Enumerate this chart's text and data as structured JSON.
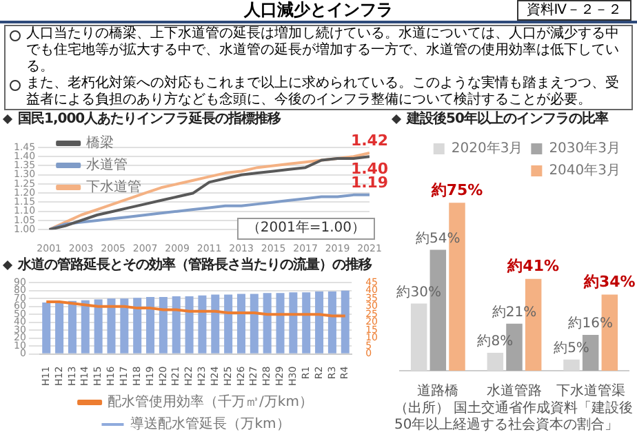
{
  "chart_data": [
    {
      "type": "other",
      "title": "人口減少とインフラ",
      "annotations": [
        "資料Ⅳ－２－２",
        "人口当たりの橋梁、上下水道管の延長は増加し続けている。水道については、人口が減少する中でも住宅地等が拡大する中で、水道管の延長が増加する一方で、水道管の使用効率は低下している。",
        "また、老朽化対策への対応もこれまで以上に求められている。このような実情も踏まえつつ、受益者による負担のあり方なども念頭に、今後のインフラ整備について検討することが必要。"
      ]
    },
    {
      "type": "line",
      "title": "国民1,000人あたりインフラ延長の指標推移",
      "x": [
        2001,
        2002,
        2003,
        2004,
        2005,
        2006,
        2007,
        2008,
        2009,
        2010,
        2011,
        2012,
        2013,
        2014,
        2015,
        2016,
        2017,
        2018,
        2019,
        2020,
        2021
      ],
      "series": [
        {
          "name": "橋梁",
          "color": "#595959",
          "values": [
            1.0,
            1.02,
            1.05,
            1.08,
            1.1,
            1.12,
            1.14,
            1.16,
            1.18,
            1.2,
            1.26,
            1.28,
            1.3,
            1.31,
            1.32,
            1.33,
            1.34,
            1.38,
            1.39,
            1.39,
            1.4
          ],
          "value_labels": [
            null,
            null,
            null,
            null,
            null,
            null,
            null,
            null,
            null,
            null,
            null,
            null,
            null,
            null,
            null,
            null,
            null,
            null,
            null,
            null,
            "1.40"
          ]
        },
        {
          "name": "水道管",
          "color": "#7f9cc8",
          "values": [
            1.0,
            1.03,
            1.04,
            1.05,
            1.06,
            1.07,
            1.08,
            1.09,
            1.1,
            1.11,
            1.12,
            1.13,
            1.13,
            1.14,
            1.15,
            1.16,
            1.17,
            1.18,
            1.18,
            1.19,
            1.19
          ],
          "value_labels": [
            null,
            null,
            null,
            null,
            null,
            null,
            null,
            null,
            null,
            null,
            null,
            null,
            null,
            null,
            null,
            null,
            null,
            null,
            null,
            null,
            "1.19"
          ]
        },
        {
          "name": "下水道管",
          "color": "#f4b183",
          "values": [
            1.0,
            1.04,
            1.08,
            1.11,
            1.14,
            1.17,
            1.2,
            1.23,
            1.25,
            1.27,
            1.29,
            1.31,
            1.32,
            1.34,
            1.35,
            1.36,
            1.37,
            1.38,
            1.39,
            1.4,
            1.42
          ],
          "value_labels": [
            null,
            null,
            null,
            null,
            null,
            null,
            null,
            null,
            null,
            null,
            null,
            null,
            null,
            null,
            null,
            null,
            null,
            null,
            null,
            null,
            "1.42"
          ]
        }
      ],
      "xlim": [
        2001,
        2021
      ],
      "xticks": [
        2001,
        2003,
        2005,
        2007,
        2009,
        2011,
        2013,
        2015,
        2017,
        2019,
        2021
      ],
      "ylim": [
        1.0,
        1.45
      ],
      "yticks": [
        {
          "value": 1.0,
          "label": "1.00"
        },
        {
          "value": 1.05,
          "label": "1.05"
        },
        {
          "value": 1.1,
          "label": "1.10"
        },
        {
          "value": 1.15,
          "label": "1.15"
        },
        {
          "value": 1.2,
          "label": "1.20"
        },
        {
          "value": 1.25,
          "label": "1.25"
        },
        {
          "value": 1.3,
          "label": "1.30"
        },
        {
          "value": 1.35,
          "label": "1.35"
        },
        {
          "value": 1.4,
          "label": "1.40"
        },
        {
          "value": 1.45,
          "label": "1.45"
        }
      ],
      "grid": "y",
      "legend": "top left",
      "marker": "none",
      "line_style": "solid",
      "annotations": [
        "（2001年=1.00）"
      ]
    },
    {
      "type": "bar",
      "title": "水道の管路延長とその効率（管路長さ当たりの流量）の推移",
      "categories": [
        "H11",
        "H12",
        "H13",
        "H14",
        "H15",
        "H16",
        "H17",
        "H18",
        "H19",
        "H20",
        "H21",
        "H22",
        "H23",
        "H24",
        "H25",
        "H26",
        "H27",
        "H28",
        "H29",
        "H30",
        "R1",
        "R2",
        "R3",
        "R4"
      ],
      "series": [
        {
          "name": "導送配水管延長（万km）",
          "color": "#8faadc",
          "values": [
            65,
            66,
            67,
            68,
            69,
            70,
            70,
            71,
            72,
            72,
            73,
            73,
            74,
            75,
            75,
            76,
            76,
            77,
            77,
            78,
            78,
            79,
            79,
            80
          ]
        },
        {
          "name": "配水管使用効率（千万㎥/万km）",
          "type": "line",
          "axis": "y2",
          "color": "#ed7d31",
          "values": [
            33,
            33,
            32,
            31,
            30,
            30,
            30,
            29,
            29,
            28,
            28,
            27,
            27,
            27,
            26,
            26,
            26,
            25,
            25,
            25,
            25,
            25,
            24,
            24
          ]
        }
      ],
      "ylim": [
        0,
        90
      ],
      "yticks": [
        0,
        10,
        20,
        30,
        40,
        50,
        60,
        70,
        80,
        90
      ],
      "y2lim": [
        0,
        45
      ],
      "y2ticks": [
        0,
        5,
        10,
        15,
        20,
        25,
        30,
        35,
        40,
        45
      ],
      "grid": "y",
      "legend": "bottom",
      "marker": "none"
    },
    {
      "type": "bar",
      "title": "建設後50年以上のインフラの比率",
      "categories": [
        "道路橋",
        "水道管路",
        "下水道管渠"
      ],
      "series": [
        {
          "name": "2020年3月",
          "color": "#d9d9d9",
          "values": [
            30,
            8,
            5
          ],
          "value_labels": [
            "約30%",
            "約8%",
            "約5%"
          ]
        },
        {
          "name": "2030年3月",
          "color": "#a5a5a5",
          "values": [
            54,
            21,
            16
          ],
          "value_labels": [
            "約54%",
            "約21%",
            "約16%"
          ]
        },
        {
          "name": "2040年3月",
          "color": "#f4b183",
          "values": [
            75,
            41,
            34
          ],
          "value_labels": [
            "約75%",
            "約41%",
            "約34%"
          ]
        }
      ],
      "tick_labels": "x",
      "legend": "top right",
      "annotations": [
        "（出所） 国土交通省作成資料「建設後50年以上経過する社会資本の割合」"
      ]
    }
  ]
}
